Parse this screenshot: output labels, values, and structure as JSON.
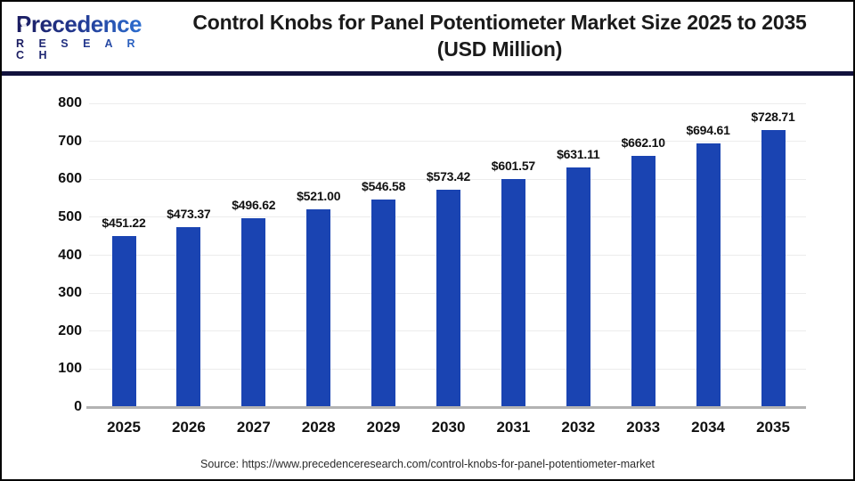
{
  "header": {
    "logo": {
      "brand": "Precedence",
      "sub": "R E S E A R C H"
    },
    "title_line1": "Control Knobs for Panel Potentiometer Market Size 2025 to 2035",
    "title_line2": "(USD Million)"
  },
  "chart_data": {
    "type": "bar",
    "title": "Control Knobs for Panel Potentiometer Market Size 2025 to 2035 (USD Million)",
    "categories": [
      "2025",
      "2026",
      "2027",
      "2028",
      "2029",
      "2030",
      "2031",
      "2032",
      "2033",
      "2034",
      "2035"
    ],
    "values": [
      451.22,
      473.37,
      496.62,
      521.0,
      546.58,
      573.42,
      601.57,
      631.11,
      662.1,
      694.61,
      728.71
    ],
    "value_labels": [
      "$451.22",
      "$473.37",
      "$496.62",
      "$521.00",
      "$546.58",
      "$573.42",
      "$601.57",
      "$631.11",
      "$662.10",
      "$694.61",
      "$728.71"
    ],
    "xlabel": "",
    "ylabel": "",
    "ylim": [
      0,
      800
    ],
    "y_ticks": [
      0,
      100,
      200,
      300,
      400,
      500,
      600,
      700,
      800
    ],
    "grid": true,
    "legend_position": "none",
    "bar_color": "#1a44b2"
  },
  "footer": {
    "source": "Source: https://www.precedenceresearch.com/control-knobs-for-panel-potentiometer-market"
  },
  "colors": {
    "bar": "#1a44b2",
    "divider": "#12123d",
    "axis": "#b3b3b3",
    "grid": "#ececec",
    "text": "#111111"
  }
}
